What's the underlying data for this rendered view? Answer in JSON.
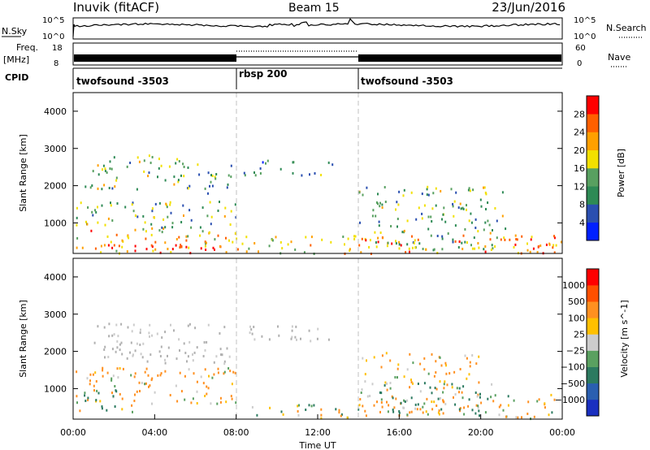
{
  "header": {
    "station": "Inuvik (fitACF)",
    "beam": "Beam 15",
    "date": "23/Jun/2016"
  },
  "status_panels": {
    "nsky_label": "N.Sky",
    "nsearch_label": "N.Search",
    "noise_tick_top": "10^5",
    "noise_tick_bottom": "10^0",
    "freq_label_line1": "Freq.",
    "freq_label_line2": "[MHz]",
    "freq_tick_top": "18",
    "freq_tick_bottom": "8",
    "nave_label": "Nave",
    "nave_tick_top": "60",
    "nave_tick_bottom": "0",
    "cpid_label": "CPID",
    "cpid_segments": [
      {
        "name": "twofsound -3503",
        "start_h": 0,
        "end_h": 8
      },
      {
        "name": "rbsp 200",
        "start_h": 8,
        "end_h": 14
      },
      {
        "name": "twofsound -3503",
        "start_h": 14,
        "end_h": 24
      }
    ]
  },
  "colors": {
    "power_scale": [
      "#0020ff",
      "#2a4fb0",
      "#2e8a55",
      "#58a060",
      "#f2e000",
      "#ffa000",
      "#ff6000",
      "#ff0000"
    ],
    "velocity_scale": [
      "#ff0000",
      "#ff5000",
      "#ff9020",
      "#ffc000",
      "#cccccc",
      "#5aa060",
      "#2c7a60",
      "#2a5fb0",
      "#1a2fc0"
    ],
    "ground_scatter": "#b0b0b0",
    "divider": "#c0c0c0"
  },
  "chart_data": [
    {
      "type": "heatmap",
      "title": "",
      "xlabel": "",
      "ylabel": "Slant Range [km]",
      "x_unit": "hours UT",
      "xlim": [
        0,
        24
      ],
      "ylim": [
        180,
        4500
      ],
      "yticks": [
        1000,
        2000,
        3000,
        4000
      ],
      "colorbar_label": "Power [dB]",
      "colorbar_ticks": [
        "4",
        "8",
        "12",
        "16",
        "20",
        "24",
        "28"
      ],
      "clim": [
        0,
        30
      ],
      "regions": [
        {
          "x0": 0.1,
          "x1": 8.0,
          "y0": 180,
          "y1": 900,
          "z": 20
        },
        {
          "x0": 0.1,
          "x1": 8.0,
          "y0": 900,
          "y1": 1600,
          "z": 13
        },
        {
          "x0": 0.5,
          "x1": 5.5,
          "y0": 1900,
          "y1": 2900,
          "z": 14
        },
        {
          "x0": 5.5,
          "x1": 7.8,
          "y0": 1800,
          "y1": 2600,
          "z": 11
        },
        {
          "x0": 1.5,
          "x1": 7.8,
          "y0": 200,
          "y1": 450,
          "z": 28
        },
        {
          "x0": 8.0,
          "x1": 14.0,
          "y0": 200,
          "y1": 700,
          "z": 18
        },
        {
          "x0": 8.3,
          "x1": 12.8,
          "y0": 2300,
          "y1": 2700,
          "z": 9
        },
        {
          "x0": 14.0,
          "x1": 21.5,
          "y0": 300,
          "y1": 2000,
          "z": 13
        },
        {
          "x0": 14.0,
          "x1": 24.0,
          "y0": 200,
          "y1": 700,
          "z": 22
        },
        {
          "x0": 21.5,
          "x1": 24.0,
          "y0": 200,
          "y1": 600,
          "z": 26
        }
      ]
    },
    {
      "type": "heatmap",
      "title": "",
      "xlabel": "Time UT",
      "ylabel": "Slant Range [km]",
      "x_unit": "hours UT",
      "xlim": [
        0,
        24
      ],
      "ylim": [
        180,
        4500
      ],
      "xticks": [
        "00:00",
        "04:00",
        "08:00",
        "12:00",
        "16:00",
        "20:00",
        "00:00"
      ],
      "yticks": [
        1000,
        2000,
        3000,
        4000
      ],
      "colorbar_label": "Velocity [m s^-1]",
      "colorbar_ticks": [
        "1000",
        "500",
        "100",
        "25",
        "−25",
        "−100",
        "−500",
        "−1000"
      ],
      "regions": [
        {
          "x0": 0.1,
          "x1": 8.0,
          "y0": 600,
          "y1": 1600,
          "v": -200
        },
        {
          "x0": 0.1,
          "x1": 3.0,
          "y0": 400,
          "y1": 1000,
          "v": 120
        },
        {
          "x0": 1.0,
          "x1": 7.8,
          "y0": 1700,
          "y1": 2800,
          "v": 0
        },
        {
          "x0": 8.3,
          "x1": 14.0,
          "y0": 200,
          "y1": 600,
          "v": 60
        },
        {
          "x0": 8.4,
          "x1": 12.8,
          "y0": 2300,
          "y1": 2700,
          "v": 0
        },
        {
          "x0": 14.0,
          "x1": 20.0,
          "y0": 300,
          "y1": 2000,
          "v": -150
        },
        {
          "x0": 15.0,
          "x1": 20.5,
          "y0": 300,
          "y1": 1200,
          "v": 200
        },
        {
          "x0": 20.0,
          "x1": 23.8,
          "y0": 200,
          "y1": 900,
          "v": -80
        }
      ]
    }
  ]
}
